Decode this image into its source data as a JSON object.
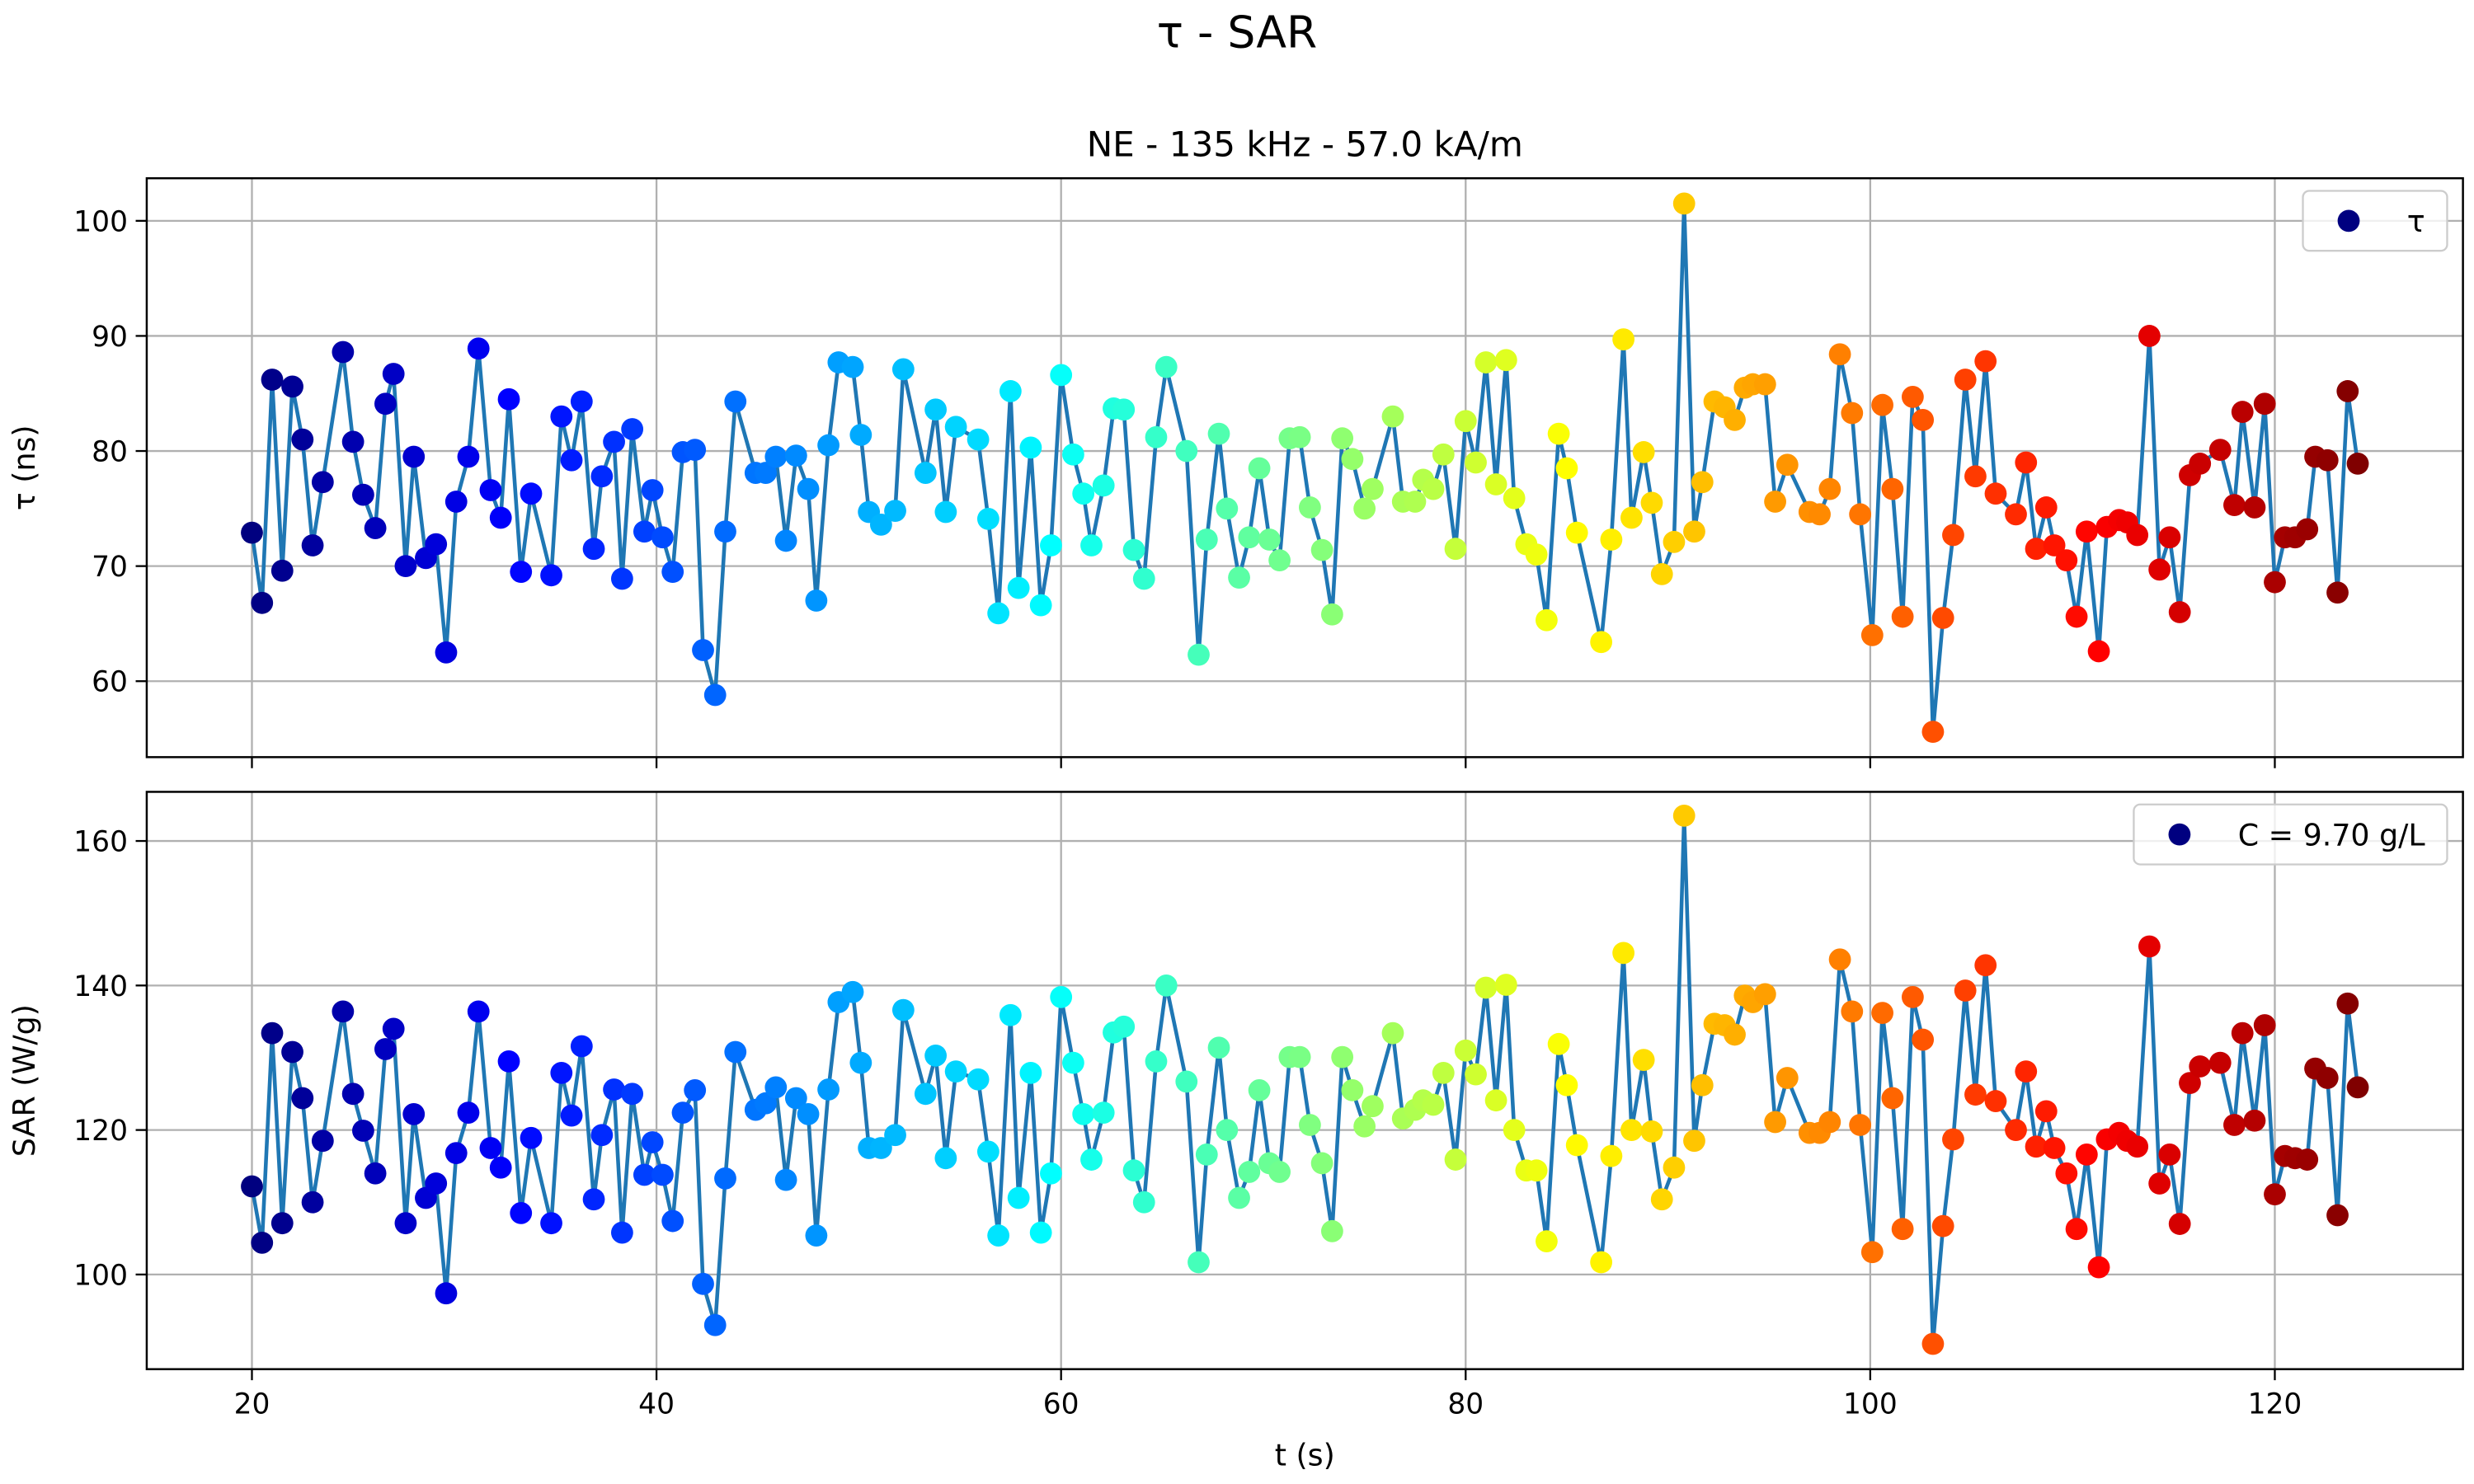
{
  "title": "τ - SAR",
  "chart_data": [
    {
      "type": "line",
      "title": "NE - 135 kHz - 57.0 kA/m",
      "ylabel": "τ (ns)",
      "x": [
        20.0,
        20.5,
        21.0,
        21.5,
        22.0,
        22.5,
        23.0,
        23.5,
        24.5,
        25.0,
        25.5,
        26.1,
        26.6,
        27.0,
        27.6,
        28.0,
        28.6,
        29.1,
        29.6,
        30.1,
        30.7,
        31.2,
        31.8,
        32.3,
        32.7,
        33.3,
        33.8,
        34.8,
        35.3,
        35.8,
        36.3,
        36.9,
        37.3,
        37.9,
        38.3,
        38.8,
        39.4,
        39.8,
        40.3,
        40.8,
        41.3,
        41.9,
        42.3,
        42.9,
        43.4,
        43.9,
        44.9,
        45.4,
        45.9,
        46.4,
        46.9,
        47.5,
        47.9,
        48.5,
        49.0,
        49.7,
        50.1,
        50.5,
        51.1,
        51.8,
        52.2,
        53.3,
        53.8,
        54.3,
        54.8,
        55.9,
        56.4,
        56.9,
        57.5,
        57.9,
        58.5,
        59.0,
        59.5,
        60.0,
        60.6,
        61.1,
        61.5,
        62.1,
        62.6,
        63.1,
        63.6,
        64.1,
        64.7,
        65.2,
        66.2,
        66.8,
        67.2,
        67.8,
        68.2,
        68.8,
        69.3,
        69.8,
        70.3,
        70.8,
        71.3,
        71.8,
        72.3,
        72.9,
        73.4,
        73.9,
        74.4,
        75.0,
        75.4,
        76.4,
        76.9,
        77.5,
        77.9,
        78.4,
        78.9,
        79.5,
        80.0,
        80.5,
        81.0,
        81.5,
        82.0,
        82.4,
        83.0,
        83.5,
        84.0,
        84.6,
        85.0,
        85.5,
        86.7,
        87.2,
        87.8,
        88.2,
        88.8,
        89.2,
        89.7,
        90.3,
        90.8,
        91.3,
        91.7,
        92.3,
        92.8,
        93.3,
        93.8,
        94.2,
        94.8,
        95.3,
        95.9,
        97.0,
        97.5,
        98.0,
        98.5,
        99.1,
        99.5,
        100.1,
        100.6,
        101.1,
        101.6,
        102.1,
        102.6,
        103.1,
        103.6,
        104.1,
        104.7,
        105.2,
        105.7,
        106.2,
        107.2,
        107.7,
        108.2,
        108.7,
        109.1,
        109.7,
        110.2,
        110.7,
        111.3,
        111.7,
        112.3,
        112.7,
        113.2,
        113.8,
        114.3,
        114.8,
        115.3,
        115.8,
        116.3,
        117.3,
        118.0,
        118.4,
        119.0,
        119.5,
        120.0,
        120.5,
        121.0,
        121.6,
        122.0,
        122.6,
        123.1,
        123.6,
        124.1
      ],
      "series": [
        {
          "name": "τ",
          "color": "#1f77b4",
          "values": [
            72.9,
            66.8,
            86.2,
            69.6,
            85.6,
            81.0,
            71.8,
            77.3,
            88.6,
            80.8,
            76.2,
            73.3,
            84.1,
            86.7,
            70.0,
            79.5,
            70.7,
            71.9,
            62.5,
            75.6,
            79.5,
            88.9,
            76.6,
            74.2,
            84.5,
            69.5,
            76.3,
            69.2,
            83.0,
            79.2,
            84.3,
            71.5,
            77.8,
            80.8,
            68.9,
            81.9,
            73.0,
            76.6,
            72.5,
            69.5,
            79.9,
            80.1,
            62.7,
            58.8,
            73.0,
            84.3,
            78.1,
            78.1,
            79.5,
            72.2,
            79.6,
            76.7,
            67.0,
            80.5,
            87.7,
            87.3,
            81.4,
            74.7,
            73.6,
            74.8,
            87.1,
            78.1,
            83.6,
            74.7,
            82.1,
            81.0,
            74.1,
            65.9,
            85.2,
            68.1,
            80.3,
            66.6,
            71.8,
            86.6,
            79.7,
            76.3,
            71.8,
            77.0,
            83.7,
            83.6,
            71.4,
            68.9,
            81.2,
            87.3,
            80.0,
            62.3,
            72.3,
            81.5,
            75.0,
            69.0,
            72.5,
            78.5,
            72.3,
            70.5,
            81.1,
            81.2,
            75.1,
            71.4,
            65.8,
            81.1,
            79.3,
            75.0,
            76.7,
            83.0,
            75.6,
            75.6,
            77.5,
            76.7,
            79.7,
            71.5,
            82.6,
            79.0,
            87.7,
            77.1,
            87.9,
            75.9,
            71.9,
            71.0,
            65.3,
            81.5,
            78.5,
            72.9,
            63.4,
            72.3,
            89.7,
            74.2,
            79.9,
            75.5,
            69.3,
            72.1,
            101.5,
            73.0,
            77.3,
            84.3,
            83.8,
            82.7,
            85.5,
            85.8,
            85.8,
            75.6,
            78.8,
            74.7,
            74.5,
            76.7,
            88.4,
            83.3,
            74.5,
            64.0,
            84.0,
            76.7,
            65.6,
            84.7,
            82.7,
            55.6,
            65.5,
            72.7,
            86.2,
            77.8,
            87.8,
            76.3,
            74.5,
            79.0,
            71.5,
            75.1,
            71.8,
            70.5,
            65.6,
            73.0,
            62.6,
            73.4,
            74.0,
            73.8,
            72.7,
            90.0,
            69.7,
            72.5,
            66.0,
            77.9,
            78.9,
            80.1,
            75.3,
            83.4,
            75.1,
            84.1,
            68.6,
            72.5,
            72.5,
            73.2,
            79.5,
            79.2,
            67.7,
            85.2,
            78.9
          ]
        }
      ],
      "marker_colormap": "jet",
      "xlim": [
        14.8,
        129.3
      ],
      "xticks": [
        20,
        40,
        60,
        80,
        100,
        120
      ],
      "ylim": [
        53.4,
        103.7
      ],
      "yticks": [
        60,
        70,
        80,
        90,
        100
      ],
      "grid": true,
      "legend": "upper right"
    },
    {
      "type": "line",
      "xlabel": "t (s)",
      "ylabel": "SAR (W/g)",
      "x": [
        20.0,
        20.5,
        21.0,
        21.5,
        22.0,
        22.5,
        23.0,
        23.5,
        24.5,
        25.0,
        25.5,
        26.1,
        26.6,
        27.0,
        27.6,
        28.0,
        28.6,
        29.1,
        29.6,
        30.1,
        30.7,
        31.2,
        31.8,
        32.3,
        32.7,
        33.3,
        33.8,
        34.8,
        35.3,
        35.8,
        36.3,
        36.9,
        37.3,
        37.9,
        38.3,
        38.8,
        39.4,
        39.8,
        40.3,
        40.8,
        41.3,
        41.9,
        42.3,
        42.9,
        43.4,
        43.9,
        44.9,
        45.4,
        45.9,
        46.4,
        46.9,
        47.5,
        47.9,
        48.5,
        49.0,
        49.7,
        50.1,
        50.5,
        51.1,
        51.8,
        52.2,
        53.3,
        53.8,
        54.3,
        54.8,
        55.9,
        56.4,
        56.9,
        57.5,
        57.9,
        58.5,
        59.0,
        59.5,
        60.0,
        60.6,
        61.1,
        61.5,
        62.1,
        62.6,
        63.1,
        63.6,
        64.1,
        64.7,
        65.2,
        66.2,
        66.8,
        67.2,
        67.8,
        68.2,
        68.8,
        69.3,
        69.8,
        70.3,
        70.8,
        71.3,
        71.8,
        72.3,
        72.9,
        73.4,
        73.9,
        74.4,
        75.0,
        75.4,
        76.4,
        76.9,
        77.5,
        77.9,
        78.4,
        78.9,
        79.5,
        80.0,
        80.5,
        81.0,
        81.5,
        82.0,
        82.4,
        83.0,
        83.5,
        84.0,
        84.6,
        85.0,
        85.5,
        86.7,
        87.2,
        87.8,
        88.2,
        88.8,
        89.2,
        89.7,
        90.3,
        90.8,
        91.3,
        91.7,
        92.3,
        92.8,
        93.3,
        93.8,
        94.2,
        94.8,
        95.3,
        95.9,
        97.0,
        97.5,
        98.0,
        98.5,
        99.1,
        99.5,
        100.1,
        100.6,
        101.1,
        101.6,
        102.1,
        102.6,
        103.1,
        103.6,
        104.1,
        104.7,
        105.2,
        105.7,
        106.2,
        107.2,
        107.7,
        108.2,
        108.7,
        109.1,
        109.7,
        110.2,
        110.7,
        111.3,
        111.7,
        112.3,
        112.7,
        113.2,
        113.8,
        114.3,
        114.8,
        115.3,
        115.8,
        116.3,
        117.3,
        118.0,
        118.4,
        119.0,
        119.5,
        120.0,
        120.5,
        121.0,
        121.6,
        122.0,
        122.6,
        123.1,
        123.6,
        124.1
      ],
      "series": [
        {
          "name": "C = 9.70 g/L",
          "color": "#1f77b4",
          "values": [
            112.2,
            104.4,
            133.4,
            107.1,
            130.8,
            124.4,
            110.0,
            118.5,
            136.4,
            125.0,
            119.9,
            114.0,
            131.2,
            134.0,
            107.1,
            122.2,
            110.6,
            112.6,
            97.4,
            116.8,
            122.4,
            136.4,
            117.5,
            114.8,
            129.5,
            108.5,
            118.9,
            107.1,
            127.9,
            122.0,
            131.6,
            110.4,
            119.3,
            125.6,
            105.8,
            125.0,
            113.8,
            118.3,
            113.8,
            107.4,
            122.4,
            125.5,
            98.7,
            93.0,
            113.3,
            130.8,
            122.8,
            123.7,
            125.9,
            113.1,
            124.4,
            122.2,
            105.4,
            125.6,
            137.7,
            139.1,
            129.3,
            117.5,
            117.5,
            119.3,
            136.6,
            125.0,
            130.3,
            116.1,
            128.1,
            127.0,
            117.0,
            105.4,
            135.9,
            110.6,
            127.9,
            105.8,
            114.0,
            138.4,
            129.3,
            122.2,
            115.9,
            122.4,
            133.5,
            134.3,
            114.4,
            110.0,
            129.5,
            140.0,
            126.7,
            101.7,
            116.6,
            131.4,
            120.0,
            110.6,
            114.2,
            125.5,
            115.4,
            114.2,
            130.1,
            130.1,
            120.7,
            115.4,
            106.0,
            130.1,
            125.5,
            120.5,
            123.3,
            133.4,
            121.6,
            122.8,
            124.1,
            123.5,
            127.9,
            115.9,
            131.0,
            127.7,
            139.7,
            124.1,
            140.1,
            120.0,
            114.4,
            114.4,
            104.6,
            131.9,
            126.2,
            117.9,
            101.7,
            116.4,
            144.5,
            120.0,
            129.7,
            119.8,
            110.4,
            114.8,
            163.5,
            118.5,
            126.2,
            134.7,
            134.5,
            133.2,
            138.6,
            137.7,
            138.8,
            121.1,
            127.2,
            119.6,
            119.6,
            121.1,
            143.6,
            136.4,
            120.7,
            103.1,
            136.2,
            124.4,
            106.3,
            138.4,
            132.5,
            90.4,
            106.7,
            118.7,
            139.3,
            124.9,
            142.8,
            124.0,
            120.0,
            128.1,
            117.7,
            122.6,
            117.5,
            114.0,
            106.3,
            116.6,
            101.0,
            118.7,
            119.6,
            118.5,
            117.7,
            145.4,
            112.6,
            116.6,
            107.0,
            126.5,
            128.8,
            129.3,
            120.7,
            133.4,
            121.3,
            134.5,
            111.1,
            116.4,
            116.1,
            115.9,
            128.5,
            127.2,
            108.2,
            137.5,
            125.9
          ]
        }
      ],
      "marker_colormap": "jet",
      "xlim": [
        14.8,
        129.3
      ],
      "xticks": [
        20,
        40,
        60,
        80,
        100,
        120
      ],
      "ylim": [
        86.9,
        166.8
      ],
      "yticks": [
        100,
        120,
        140,
        160
      ],
      "grid": true,
      "legend": "upper right"
    }
  ]
}
